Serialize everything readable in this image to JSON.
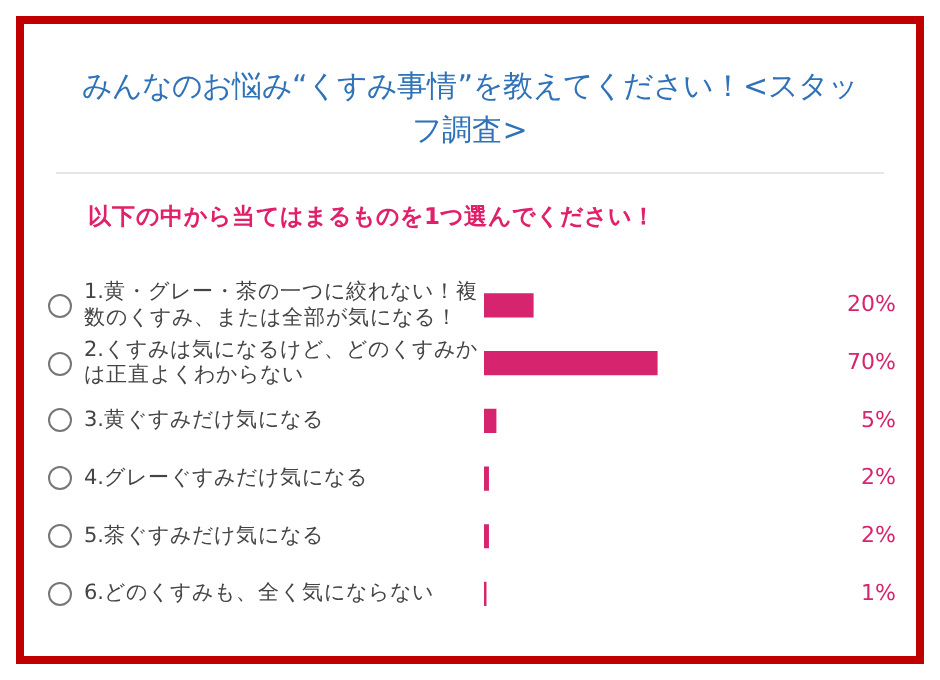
{
  "chart_data": {
    "type": "bar",
    "orientation": "horizontal",
    "title": "みんなのお悩み“くすみ事情”を教えてください！<スタッフ調査>",
    "subtitle": "以下の中から当てはまるものを1つ選んでください！",
    "categories": [
      "1.黄・グレー・茶の一つに絞れない！複数のくすみ、または全部が気になる！",
      "2.くすみは気になるけど、どのくすみかは正直よくわからない",
      "3.黄ぐすみだけ気になる",
      "4.グレーぐすみだけ気になる",
      "5.茶ぐすみだけ気になる",
      "6.どのくすみも、全く気にならない"
    ],
    "values": [
      20,
      70,
      5,
      2,
      2,
      1
    ],
    "value_labels": [
      "20%",
      "70%",
      "5%",
      "2%",
      "2%",
      "1%"
    ],
    "color": "#d6246e",
    "grid": false,
    "legend": false,
    "tick_labels": "y"
  }
}
